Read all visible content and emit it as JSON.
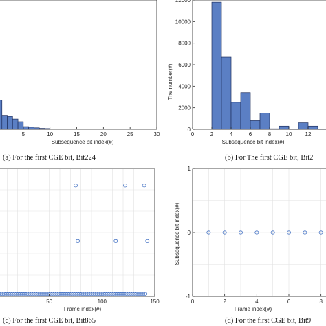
{
  "chart_data": [
    {
      "type": "bar",
      "panel": "a",
      "caption": "(a) For the first CGE bit, Bit224",
      "xlabel": "Subsequence bit index(#)",
      "ylabel": "",
      "xlim": [
        0,
        30
      ],
      "ylim": [
        0,
        12000
      ],
      "xticks": [
        5,
        10,
        15,
        20,
        25,
        30
      ],
      "yticks": [],
      "grid": false,
      "bin_width": 1,
      "bins": [
        {
          "x": 0,
          "value": 2700
        },
        {
          "x": 1,
          "value": 1300
        },
        {
          "x": 2,
          "value": 1200
        },
        {
          "x": 3,
          "value": 950
        },
        {
          "x": 4,
          "value": 700
        },
        {
          "x": 5,
          "value": 250
        },
        {
          "x": 6,
          "value": 200
        },
        {
          "x": 7,
          "value": 140
        },
        {
          "x": 8,
          "value": 90
        },
        {
          "x": 9,
          "value": 70
        }
      ]
    },
    {
      "type": "bar",
      "panel": "b",
      "caption": "(b) For The first CGE bit, Bit2",
      "xlabel": "Subsequence bit index(#)",
      "ylabel": "The number(#)",
      "xlim": [
        0,
        15
      ],
      "ylim": [
        0,
        12000
      ],
      "xticks": [
        0,
        2,
        4,
        6,
        8,
        10,
        12,
        14
      ],
      "yticks": [
        0,
        2000,
        4000,
        6000,
        8000,
        10000,
        12000
      ],
      "grid": false,
      "bin_width": 1,
      "bins": [
        {
          "x": 2,
          "value": 11800
        },
        {
          "x": 3,
          "value": 6700
        },
        {
          "x": 4,
          "value": 2500
        },
        {
          "x": 5,
          "value": 3400
        },
        {
          "x": 6,
          "value": 800
        },
        {
          "x": 7,
          "value": 1500
        },
        {
          "x": 8,
          "value": 50
        },
        {
          "x": 9,
          "value": 300
        },
        {
          "x": 10,
          "value": 20
        },
        {
          "x": 11,
          "value": 600
        },
        {
          "x": 12,
          "value": 300
        },
        {
          "x": 13,
          "value": 20
        },
        {
          "x": 14,
          "value": 150
        }
      ]
    },
    {
      "type": "scatter",
      "panel": "c",
      "caption": "(c) For the first CGE bit, Bit865",
      "xlabel": "Frame index(#)",
      "ylabel": "",
      "xlim": [
        0,
        150
      ],
      "ylim": [
        0,
        30
      ],
      "xticks": [
        50,
        100,
        150
      ],
      "yticks": [],
      "grid": true,
      "points": [
        {
          "x": 75,
          "y": 26
        },
        {
          "x": 122,
          "y": 26
        },
        {
          "x": 140,
          "y": 26
        },
        {
          "x": 77,
          "y": 13
        },
        {
          "x": 113,
          "y": 13
        },
        {
          "x": 143,
          "y": 13
        }
      ],
      "baseline_points": {
        "y": 0.6,
        "x_from": 1,
        "x_to": 142,
        "step": 2
      }
    },
    {
      "type": "scatter",
      "panel": "d",
      "caption": "(d) For the first CGE bit, Bit9",
      "xlabel": "Frame index(#)",
      "ylabel": "Subsequence bit index(#)",
      "xlim": [
        0,
        9
      ],
      "ylim": [
        -1,
        1
      ],
      "xticks": [
        0,
        2,
        4,
        6,
        8
      ],
      "yticks": [
        -1,
        0,
        1
      ],
      "grid": true,
      "points": [
        {
          "x": 1,
          "y": 0
        },
        {
          "x": 2,
          "y": 0
        },
        {
          "x": 3,
          "y": 0
        },
        {
          "x": 4,
          "y": 0
        },
        {
          "x": 5,
          "y": 0
        },
        {
          "x": 6,
          "y": 0
        },
        {
          "x": 7,
          "y": 0
        },
        {
          "x": 8,
          "y": 0
        }
      ]
    }
  ],
  "colors": {
    "bar_fill": "#5b7fc4",
    "bar_stroke": "#1f2f5e",
    "marker": "#4472c4"
  }
}
